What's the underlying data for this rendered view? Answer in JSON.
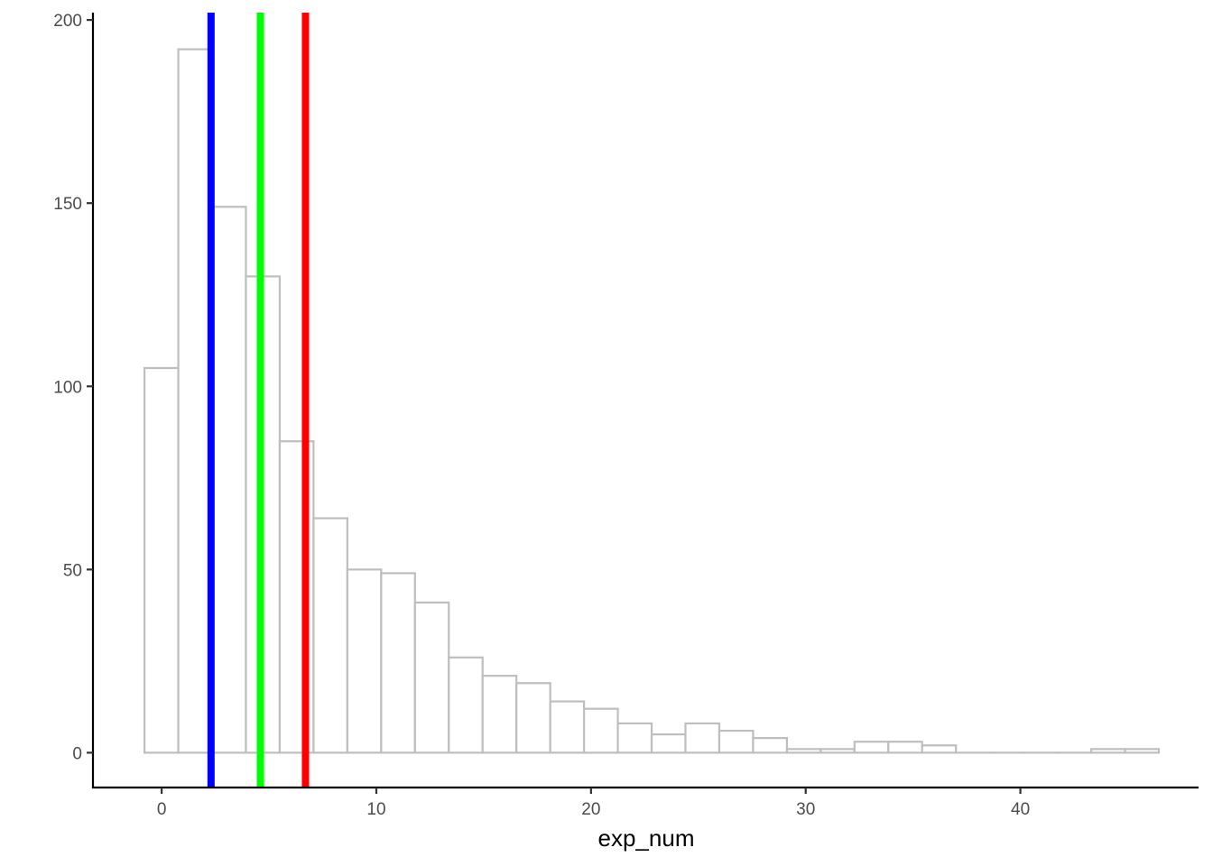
{
  "chart_data": {
    "type": "bar",
    "subtype": "histogram",
    "title": "",
    "xlabel": "exp_num",
    "ylabel": "",
    "xlim": [
      -3.2,
      48.3
    ],
    "ylim": [
      -9.5,
      202
    ],
    "x_ticks": [
      0,
      10,
      20,
      30,
      40
    ],
    "y_ticks": [
      0,
      50,
      100,
      150,
      200
    ],
    "bin_width": 1.575,
    "bin_start": -0.8,
    "bins": [
      {
        "x0": -0.8,
        "x1": 0.775,
        "count": 105
      },
      {
        "x0": 0.775,
        "x1": 2.35,
        "count": 192
      },
      {
        "x0": 2.35,
        "x1": 3.925,
        "count": 149
      },
      {
        "x0": 3.925,
        "x1": 5.5,
        "count": 130
      },
      {
        "x0": 5.5,
        "x1": 7.075,
        "count": 85
      },
      {
        "x0": 7.075,
        "x1": 8.65,
        "count": 64
      },
      {
        "x0": 8.65,
        "x1": 10.225,
        "count": 50
      },
      {
        "x0": 10.225,
        "x1": 11.8,
        "count": 49
      },
      {
        "x0": 11.8,
        "x1": 13.375,
        "count": 41
      },
      {
        "x0": 13.375,
        "x1": 14.95,
        "count": 26
      },
      {
        "x0": 14.95,
        "x1": 16.525,
        "count": 21
      },
      {
        "x0": 16.525,
        "x1": 18.1,
        "count": 19
      },
      {
        "x0": 18.1,
        "x1": 19.675,
        "count": 14
      },
      {
        "x0": 19.675,
        "x1": 21.25,
        "count": 12
      },
      {
        "x0": 21.25,
        "x1": 22.825,
        "count": 8
      },
      {
        "x0": 22.825,
        "x1": 24.4,
        "count": 5
      },
      {
        "x0": 24.4,
        "x1": 25.975,
        "count": 8
      },
      {
        "x0": 25.975,
        "x1": 27.55,
        "count": 6
      },
      {
        "x0": 27.55,
        "x1": 29.125,
        "count": 4
      },
      {
        "x0": 29.125,
        "x1": 30.7,
        "count": 1
      },
      {
        "x0": 30.7,
        "x1": 32.275,
        "count": 1
      },
      {
        "x0": 32.275,
        "x1": 33.85,
        "count": 3
      },
      {
        "x0": 33.85,
        "x1": 35.425,
        "count": 3
      },
      {
        "x0": 35.425,
        "x1": 37.0,
        "count": 2
      },
      {
        "x0": 37.0,
        "x1": 38.575,
        "count": 0
      },
      {
        "x0": 38.575,
        "x1": 40.15,
        "count": 0
      },
      {
        "x0": 40.15,
        "x1": 41.725,
        "count": 0
      },
      {
        "x0": 41.725,
        "x1": 43.3,
        "count": 0
      },
      {
        "x0": 43.3,
        "x1": 44.875,
        "count": 1
      },
      {
        "x0": 44.875,
        "x1": 46.45,
        "count": 1
      }
    ],
    "vlines": [
      {
        "x": 2.3,
        "color": "#0000ff"
      },
      {
        "x": 4.6,
        "color": "#00ff00"
      },
      {
        "x": 6.7,
        "color": "#ff0000"
      }
    ],
    "bar_stroke": "#bebebe",
    "bar_fill": "#ffffff",
    "grid": false,
    "legend": "none"
  }
}
